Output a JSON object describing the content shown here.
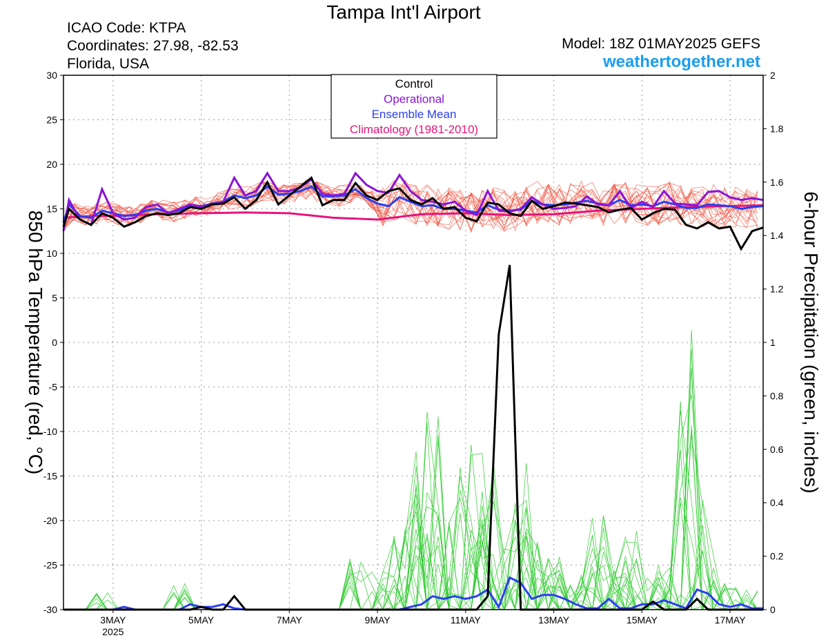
{
  "header": {
    "title": "Tampa Int'l Airport",
    "icao": "ICAO Code: KTPA",
    "coordinates": "Coordinates: 27.98, -82.53",
    "location": "Florida, USA",
    "model": "Model: 18Z 01MAY2025 GEFS",
    "site": "weathertogether.net"
  },
  "chart_data": {
    "type": "line",
    "title": "Tampa Int'l Airport",
    "ylabel_left": "850 hPa Temperature (red, °C)",
    "ylabel_right": "6-hour Precipitation (green, inches)",
    "ylim_left": [
      -30,
      30
    ],
    "ylim_right": [
      0,
      2
    ],
    "yticks_left": [
      "30",
      "25",
      "20",
      "15",
      "10",
      "5",
      "0",
      "-5",
      "-10",
      "-15",
      "-20",
      "-25",
      "-30"
    ],
    "yticks_right": [
      "2",
      "1.8",
      "1.6",
      "1.4",
      "1.2",
      "1",
      "0.8",
      "0.6",
      "0.4",
      "0.2",
      "0"
    ],
    "x_axis_days": [
      1.875,
      17.75
    ],
    "xticks": [
      {
        "day": 3,
        "label": "3MAY",
        "sub": "2025"
      },
      {
        "day": 5,
        "label": "5MAY",
        "sub": ""
      },
      {
        "day": 7,
        "label": "7MAY",
        "sub": ""
      },
      {
        "day": 9,
        "label": "9MAY",
        "sub": ""
      },
      {
        "day": 11,
        "label": "11MAY",
        "sub": ""
      },
      {
        "day": 13,
        "label": "13MAY",
        "sub": ""
      },
      {
        "day": 15,
        "label": "15MAY",
        "sub": ""
      },
      {
        "day": 17,
        "label": "17MAY",
        "sub": ""
      }
    ],
    "grid": true,
    "legend_position": "top-center",
    "legend": [
      {
        "label": "Control",
        "color": "#000000"
      },
      {
        "label": "Operational",
        "color": "#8a14d6"
      },
      {
        "label": "Ensemble Mean",
        "color": "#2a3ff0"
      },
      {
        "label": "Climatology (1981-2010)",
        "color": "#e6147a"
      }
    ],
    "colors": {
      "control": "#000000",
      "operational": "#8a14d6",
      "mean": "#2a3ff0",
      "climatology": "#e6147a",
      "members_temp": "#f0503c",
      "members_precip": "#33cc33"
    },
    "temp_series": {
      "control": [
        [
          1.875,
          13
        ],
        [
          2,
          15
        ],
        [
          2.25,
          13.8
        ],
        [
          2.5,
          13.2
        ],
        [
          2.75,
          14.5
        ],
        [
          3,
          14
        ],
        [
          3.25,
          13
        ],
        [
          3.5,
          13.5
        ],
        [
          3.75,
          14.2
        ],
        [
          4,
          14.5
        ],
        [
          4.25,
          14.3
        ],
        [
          4.5,
          14.5
        ],
        [
          4.75,
          15.2
        ],
        [
          5,
          15
        ],
        [
          5.25,
          15.5
        ],
        [
          5.5,
          15.6
        ],
        [
          5.75,
          16.3
        ],
        [
          6,
          15
        ],
        [
          6.25,
          16
        ],
        [
          6.5,
          18
        ],
        [
          6.75,
          15.5
        ],
        [
          7,
          16.5
        ],
        [
          7.25,
          17.5
        ],
        [
          7.5,
          18.5
        ],
        [
          7.75,
          15.4
        ],
        [
          8,
          16
        ],
        [
          8.25,
          16
        ],
        [
          8.5,
          17.9
        ],
        [
          8.75,
          16.5
        ],
        [
          9,
          16
        ],
        [
          9.25,
          17
        ],
        [
          9.5,
          17.3
        ],
        [
          9.75,
          16
        ],
        [
          10,
          15.5
        ],
        [
          10.25,
          16.2
        ],
        [
          10.5,
          15
        ],
        [
          10.75,
          15.2
        ],
        [
          11,
          14
        ],
        [
          11.25,
          13.6
        ],
        [
          11.5,
          15.7
        ],
        [
          11.75,
          15.5
        ],
        [
          12,
          14.5
        ],
        [
          12.25,
          14.2
        ],
        [
          12.5,
          15.9
        ],
        [
          12.75,
          15
        ],
        [
          13,
          15.3
        ],
        [
          13.25,
          15.7
        ],
        [
          13.5,
          15.6
        ],
        [
          13.75,
          15.4
        ],
        [
          14,
          15.2
        ],
        [
          14.25,
          14.6
        ],
        [
          14.5,
          14.9
        ],
        [
          14.75,
          15.1
        ],
        [
          15,
          13.8
        ],
        [
          15.25,
          14.5
        ],
        [
          15.5,
          15
        ],
        [
          15.75,
          14.9
        ],
        [
          16,
          13.2
        ],
        [
          16.25,
          12.8
        ],
        [
          16.5,
          13.5
        ],
        [
          16.75,
          12.8
        ],
        [
          17,
          13
        ],
        [
          17.25,
          10.5
        ],
        [
          17.5,
          12.5
        ],
        [
          17.75,
          12.9
        ]
      ],
      "operational": [
        [
          1.875,
          12.5
        ],
        [
          2,
          16
        ],
        [
          2.25,
          13.8
        ],
        [
          2.5,
          13.2
        ],
        [
          2.75,
          17.2
        ],
        [
          3,
          14.5
        ],
        [
          3.25,
          13.8
        ],
        [
          3.5,
          14
        ],
        [
          3.75,
          15.2
        ],
        [
          4,
          15.5
        ],
        [
          4.25,
          14.5
        ],
        [
          4.5,
          15
        ],
        [
          4.75,
          15.5
        ],
        [
          5,
          15.2
        ],
        [
          5.25,
          15.5
        ],
        [
          5.5,
          15.8
        ],
        [
          5.75,
          18.5
        ],
        [
          6,
          16.5
        ],
        [
          6.25,
          17
        ],
        [
          6.5,
          19
        ],
        [
          6.75,
          17
        ],
        [
          7,
          17
        ],
        [
          7.25,
          17.4
        ],
        [
          7.5,
          18.3
        ],
        [
          7.75,
          16.7
        ],
        [
          8,
          16.5
        ],
        [
          8.25,
          16.7
        ],
        [
          8.5,
          19
        ],
        [
          8.75,
          17.7
        ],
        [
          9,
          17
        ],
        [
          9.25,
          16.8
        ],
        [
          9.5,
          18.8
        ],
        [
          9.75,
          17
        ],
        [
          10,
          16
        ],
        [
          10.25,
          15.8
        ],
        [
          10.5,
          15.5
        ],
        [
          10.75,
          15.8
        ],
        [
          11,
          14.8
        ],
        [
          11.25,
          14.3
        ],
        [
          11.5,
          17
        ],
        [
          11.75,
          14.8
        ],
        [
          12,
          14.7
        ],
        [
          12.25,
          15
        ],
        [
          12.5,
          16.3
        ],
        [
          12.75,
          15.5
        ],
        [
          13,
          15
        ],
        [
          13.25,
          15.1
        ],
        [
          13.5,
          15.3
        ],
        [
          13.75,
          16.4
        ],
        [
          14,
          15.5
        ],
        [
          14.25,
          15.4
        ],
        [
          14.5,
          17
        ],
        [
          14.75,
          15.1
        ],
        [
          15,
          15.8
        ],
        [
          15.25,
          15.2
        ],
        [
          15.5,
          17
        ],
        [
          15.75,
          15.6
        ],
        [
          16,
          15.5
        ],
        [
          16.25,
          15.4
        ],
        [
          16.5,
          16.9
        ],
        [
          16.75,
          17
        ],
        [
          17,
          16.3
        ],
        [
          17.25,
          16
        ],
        [
          17.5,
          16.2
        ],
        [
          17.75,
          16
        ]
      ],
      "mean": [
        [
          1.875,
          13.5
        ],
        [
          2,
          15.5
        ],
        [
          2.25,
          14.2
        ],
        [
          2.5,
          14
        ],
        [
          2.75,
          14.8
        ],
        [
          3,
          14.5
        ],
        [
          3.25,
          14.2
        ],
        [
          3.5,
          14.3
        ],
        [
          3.75,
          14.8
        ],
        [
          4,
          15
        ],
        [
          4.25,
          14.6
        ],
        [
          4.5,
          14.8
        ],
        [
          4.75,
          15.4
        ],
        [
          5,
          15.3
        ],
        [
          5.25,
          15.6
        ],
        [
          5.5,
          15.8
        ],
        [
          5.75,
          16.5
        ],
        [
          6,
          16.2
        ],
        [
          6.25,
          16.5
        ],
        [
          6.5,
          17.5
        ],
        [
          6.75,
          16.6
        ],
        [
          7,
          16.7
        ],
        [
          7.25,
          17
        ],
        [
          7.5,
          17.5
        ],
        [
          7.75,
          16.4
        ],
        [
          8,
          16.4
        ],
        [
          8.25,
          16.5
        ],
        [
          8.5,
          17.2
        ],
        [
          8.75,
          16.2
        ],
        [
          9,
          15.6
        ],
        [
          9.25,
          15.3
        ],
        [
          9.5,
          16.3
        ],
        [
          9.75,
          15.8
        ],
        [
          10,
          15.3
        ],
        [
          10.25,
          15.4
        ],
        [
          10.5,
          15
        ],
        [
          10.75,
          15
        ],
        [
          11,
          14.8
        ],
        [
          11.25,
          14.6
        ],
        [
          11.5,
          15.4
        ],
        [
          11.75,
          14.9
        ],
        [
          12,
          14.8
        ],
        [
          12.25,
          14.9
        ],
        [
          12.5,
          15.9
        ],
        [
          12.75,
          15.5
        ],
        [
          13,
          15.4
        ],
        [
          13.25,
          15.5
        ],
        [
          13.5,
          15.7
        ],
        [
          13.75,
          15.9
        ],
        [
          14,
          15.6
        ],
        [
          14.25,
          15.4
        ],
        [
          14.5,
          16
        ],
        [
          14.75,
          15.4
        ],
        [
          15,
          15.5
        ],
        [
          15.25,
          15.3
        ],
        [
          15.5,
          15.8
        ],
        [
          15.75,
          15.5
        ],
        [
          16,
          15.1
        ],
        [
          16.25,
          15.1
        ],
        [
          16.5,
          15.5
        ],
        [
          16.75,
          15.4
        ],
        [
          17,
          15.3
        ],
        [
          17.25,
          15
        ],
        [
          17.5,
          15.2
        ],
        [
          17.75,
          15.3
        ]
      ],
      "climatology": [
        [
          1.875,
          14
        ],
        [
          2.5,
          14.2
        ],
        [
          3,
          14.2
        ],
        [
          3.5,
          14.3
        ],
        [
          4,
          14.4
        ],
        [
          5,
          14.5
        ],
        [
          6,
          14.6
        ],
        [
          7,
          14.5
        ],
        [
          8,
          14
        ],
        [
          9,
          13.8
        ],
        [
          10,
          14.4
        ],
        [
          11,
          14.5
        ],
        [
          12,
          14.3
        ],
        [
          13,
          14.4
        ],
        [
          14,
          14.8
        ],
        [
          15,
          15
        ],
        [
          16,
          15.2
        ],
        [
          17,
          15.3
        ],
        [
          17.75,
          15.4
        ]
      ]
    },
    "precip_series": {
      "control": [
        [
          1.875,
          0
        ],
        [
          4.75,
          0
        ],
        [
          5,
          0.01
        ],
        [
          5.25,
          0
        ],
        [
          5.5,
          0
        ],
        [
          5.75,
          0.05
        ],
        [
          6,
          0
        ],
        [
          11.25,
          0
        ],
        [
          11.5,
          0.05
        ],
        [
          11.75,
          1.03
        ],
        [
          12,
          1.29
        ],
        [
          12.25,
          0
        ],
        [
          15,
          0
        ],
        [
          15.25,
          0.03
        ],
        [
          15.5,
          0
        ],
        [
          16,
          0
        ],
        [
          16.25,
          0.04
        ],
        [
          16.5,
          0
        ],
        [
          17.75,
          0
        ]
      ],
      "mean": [
        [
          1.875,
          0
        ],
        [
          3,
          0
        ],
        [
          3.25,
          0.01
        ],
        [
          3.5,
          0
        ],
        [
          4.5,
          0
        ],
        [
          4.75,
          0.02
        ],
        [
          5,
          0.01
        ],
        [
          5.25,
          0.01
        ],
        [
          5.5,
          0.02
        ],
        [
          5.75,
          0.005
        ],
        [
          6,
          0
        ],
        [
          9.5,
          0
        ],
        [
          9.75,
          0.01
        ],
        [
          10,
          0.02
        ],
        [
          10.25,
          0.05
        ],
        [
          10.5,
          0.04
        ],
        [
          10.75,
          0.05
        ],
        [
          11,
          0.04
        ],
        [
          11.25,
          0.05
        ],
        [
          11.5,
          0.075
        ],
        [
          11.75,
          0.01
        ],
        [
          12,
          0.12
        ],
        [
          12.25,
          0.1
        ],
        [
          12.5,
          0.04
        ],
        [
          12.75,
          0.055
        ],
        [
          13,
          0.055
        ],
        [
          13.25,
          0.04
        ],
        [
          13.5,
          0.02
        ],
        [
          13.75,
          0.005
        ],
        [
          14,
          0.005
        ],
        [
          14.25,
          0.04
        ],
        [
          14.5,
          0.005
        ],
        [
          14.75,
          0.005
        ],
        [
          15,
          0.02
        ],
        [
          15.25,
          0.02
        ],
        [
          15.5,
          0.035
        ],
        [
          15.75,
          0.02
        ],
        [
          16,
          0.005
        ],
        [
          16.25,
          0.075
        ],
        [
          16.5,
          0.06
        ],
        [
          16.75,
          0.02
        ],
        [
          17,
          0.01
        ],
        [
          17.25,
          0.02
        ],
        [
          17.5,
          0.005
        ],
        [
          17.75,
          0.005
        ]
      ]
    }
  }
}
